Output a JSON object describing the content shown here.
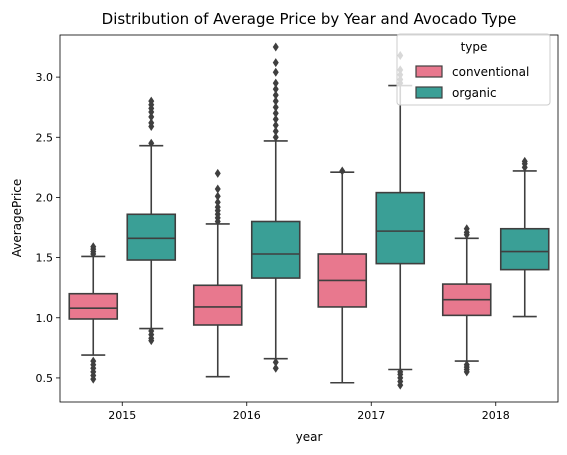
{
  "chart_data": {
    "type": "box",
    "title": "Distribution of Average Price by Year and Avocado Type",
    "xlabel": "year",
    "ylabel": "AveragePrice",
    "categories": [
      "2015",
      "2016",
      "2017",
      "2018"
    ],
    "ylim": [
      0.3,
      3.35
    ],
    "yticks": [
      0.5,
      1.0,
      1.5,
      2.0,
      2.5,
      3.0
    ],
    "ytick_labels": [
      "0.5",
      "1.0",
      "1.5",
      "2.0",
      "2.5",
      "3.0"
    ],
    "grid": false,
    "legend": {
      "title": "type",
      "position": "top-right"
    },
    "series": [
      {
        "name": "conventional",
        "color": "#e8788e",
        "boxes": [
          {
            "whisker_low": 0.69,
            "q1": 0.99,
            "median": 1.08,
            "q3": 1.2,
            "whisker_high": 1.51,
            "outliers": [
              0.49,
              0.52,
              0.55,
              0.58,
              0.61,
              0.64,
              1.53,
              1.55,
              1.57,
              1.59
            ]
          },
          {
            "whisker_low": 0.51,
            "q1": 0.94,
            "median": 1.09,
            "q3": 1.27,
            "whisker_high": 1.78,
            "outliers": [
              1.8,
              1.83,
              1.86,
              1.89,
              1.92,
              1.96,
              2.01,
              2.07,
              2.2
            ]
          },
          {
            "whisker_low": 0.46,
            "q1": 1.09,
            "median": 1.31,
            "q3": 1.53,
            "whisker_high": 2.21,
            "outliers": [
              2.22
            ]
          },
          {
            "whisker_low": 0.64,
            "q1": 1.02,
            "median": 1.15,
            "q3": 1.28,
            "whisker_high": 1.66,
            "outliers": [
              0.55,
              0.57,
              0.59,
              0.61,
              1.69,
              1.71,
              1.74
            ]
          }
        ]
      },
      {
        "name": "organic",
        "color": "#3a9f96",
        "boxes": [
          {
            "whisker_low": 0.91,
            "q1": 1.48,
            "median": 1.66,
            "q3": 1.86,
            "whisker_high": 2.43,
            "outliers": [
              0.81,
              0.83,
              0.86,
              0.89,
              2.45,
              2.59,
              2.62,
              2.67,
              2.71,
              2.74,
              2.77,
              2.8
            ]
          },
          {
            "whisker_low": 0.66,
            "q1": 1.33,
            "median": 1.53,
            "q3": 1.8,
            "whisker_high": 2.47,
            "outliers": [
              0.58,
              0.63,
              2.5,
              2.55,
              2.6,
              2.65,
              2.7,
              2.75,
              2.8,
              2.85,
              2.9,
              2.95,
              3.04,
              3.12,
              3.25
            ]
          },
          {
            "whisker_low": 0.57,
            "q1": 1.45,
            "median": 1.72,
            "q3": 2.04,
            "whisker_high": 2.93,
            "outliers": [
              0.44,
              0.47,
              0.5,
              0.53,
              0.55,
              2.95,
              2.98,
              3.02,
              3.06,
              3.18
            ]
          },
          {
            "whisker_low": 1.01,
            "q1": 1.4,
            "median": 1.55,
            "q3": 1.74,
            "whisker_high": 2.22,
            "outliers": [
              2.25,
              2.28,
              2.3
            ]
          }
        ]
      }
    ]
  }
}
